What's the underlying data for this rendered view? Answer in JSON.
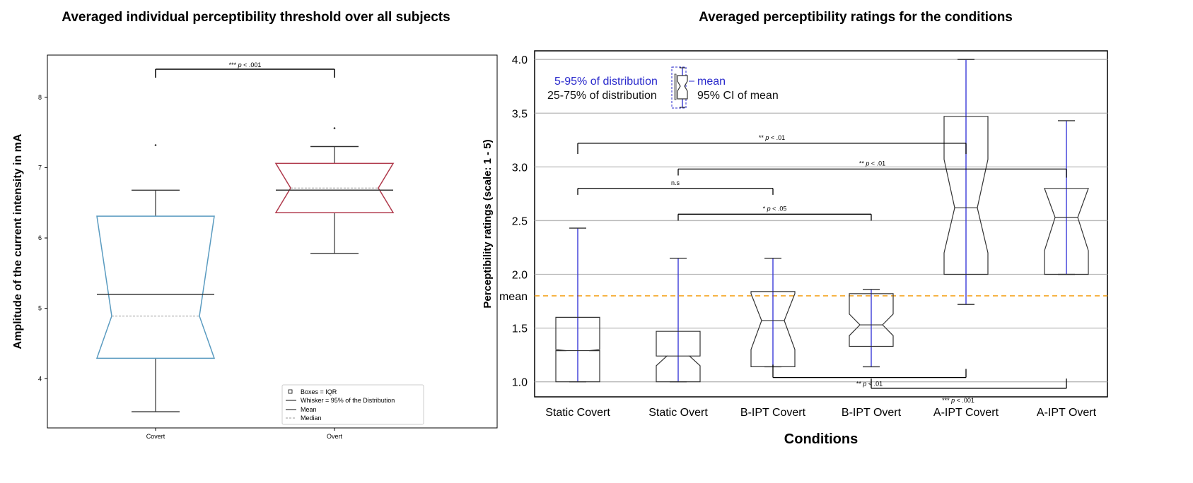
{
  "chart_data": [
    {
      "type": "box",
      "title": "Averaged individual perceptibility threshold over all subjects",
      "xlabel": "",
      "ylabel": "Amplitude of the current intensity in mA",
      "ylim": [
        3.3,
        8.6
      ],
      "yticks": [
        "4",
        "5",
        "6",
        "7",
        "8"
      ],
      "categories": [
        "Covert",
        "Overt"
      ],
      "boxes": [
        {
          "name": "Covert",
          "q1": 4.29,
          "q3": 6.31,
          "median": 4.89,
          "mean": 5.2,
          "notch_low": 4.89,
          "notch_high": 4.89,
          "whisker_low": 3.53,
          "whisker_high": 6.68,
          "outliers": [
            7.32
          ],
          "color": "#5a9bc0"
        },
        {
          "name": "Overt",
          "q1": 6.36,
          "q3": 7.06,
          "median": 6.71,
          "mean": 6.68,
          "notch_low": 6.69,
          "notch_high": 6.71,
          "whisker_low": 5.78,
          "whisker_high": 7.3,
          "outliers": [
            7.56
          ],
          "color": "#b03a4c"
        }
      ],
      "significance": [
        {
          "from": "Covert",
          "to": "Overt",
          "label": "*** p < .001",
          "stars": "***",
          "text": "p < .001"
        }
      ],
      "legend": {
        "position": "bottom-right",
        "entries": [
          "Boxes = IQR",
          "Whisker = 95% of the Distribution",
          "Mean",
          "Median"
        ]
      }
    },
    {
      "type": "box",
      "title": "Averaged perceptibility ratings for the conditions",
      "xlabel": "Conditions",
      "ylabel": "Perceptibility ratings (scale: 1 - 5)",
      "ylim": [
        0.86,
        4.08
      ],
      "yticks": [
        "1.0",
        "1.5",
        "2.0",
        "2.5",
        "3.0",
        "3.5",
        "4.0"
      ],
      "mean_line": {
        "value": 1.8,
        "label": "mean",
        "color": "#f5a623"
      },
      "categories": [
        "Static Covert",
        "Static Overt",
        "B-IPT Covert",
        "B-IPT Overt",
        "A-IPT Covert",
        "A-IPT Overt"
      ],
      "boxes": [
        {
          "name": "Static Covert",
          "q1": 1.0,
          "q3": 1.6,
          "median": 1.29,
          "notch_low": 1.29,
          "notch_high": 1.3,
          "mean": 1.3,
          "whisker_low": 1.0,
          "whisker_high": 2.43
        },
        {
          "name": "Static Overt",
          "q1": 1.0,
          "q3": 1.47,
          "median": 1.24,
          "notch_low": 1.15,
          "notch_high": 1.24,
          "mean": 1.24,
          "whisker_low": 1.0,
          "whisker_high": 2.15
        },
        {
          "name": "B-IPT Covert",
          "q1": 1.14,
          "q3": 1.84,
          "median": 1.57,
          "notch_low": 1.3,
          "notch_high": 1.82,
          "mean": 1.57,
          "whisker_low": 1.14,
          "whisker_high": 2.15
        },
        {
          "name": "B-IPT Overt",
          "q1": 1.33,
          "q3": 1.82,
          "median": 1.53,
          "notch_low": 1.43,
          "notch_high": 1.63,
          "mean": 1.53,
          "whisker_low": 1.14,
          "whisker_high": 1.86
        },
        {
          "name": "A-IPT Covert",
          "q1": 2.0,
          "q3": 3.47,
          "median": 2.62,
          "notch_low": 2.2,
          "notch_high": 3.07,
          "mean": 2.62,
          "whisker_low": 1.72,
          "whisker_high": 4.0
        },
        {
          "name": "A-IPT Overt",
          "q1": 2.0,
          "q3": 2.8,
          "median": 2.53,
          "notch_low": 2.22,
          "notch_high": 2.8,
          "mean": 2.53,
          "whisker_low": 2.0,
          "whisker_high": 3.43
        }
      ],
      "significance": [
        {
          "from": "Static Covert",
          "to": "A-IPT Covert",
          "label": "** p < .01",
          "stars": "**",
          "text": "p < .01",
          "level": 3.22,
          "from_drop": 3.12,
          "to_drop": 3.12
        },
        {
          "from": "Static Overt",
          "to": "A-IPT Overt",
          "label": "** p < .01",
          "stars": "**",
          "text": "p < .01",
          "level": 2.98,
          "from_drop": 2.92,
          "to_drop": 2.9
        },
        {
          "from": "Static Covert",
          "to": "B-IPT Covert",
          "label": "n.s",
          "stars": "",
          "text": "n.s",
          "level": 2.8,
          "from_drop": 2.74,
          "to_drop": 2.74
        },
        {
          "from": "Static Overt",
          "to": "B-IPT Overt",
          "label": "* p < .05",
          "stars": "*",
          "text": "p < .05",
          "level": 2.56,
          "from_drop": 2.5,
          "to_drop": 2.5
        },
        {
          "from": "B-IPT Covert",
          "to": "A-IPT Covert",
          "label": "** p < .01",
          "stars": "**",
          "text": "p < .01",
          "level": 1.04,
          "from_drop": 1.16,
          "to_drop": 1.12,
          "below": true
        },
        {
          "from": "B-IPT Overt",
          "to": "A-IPT Overt",
          "label": "*** p < .001",
          "stars": "***",
          "text": "p < .001",
          "level": 0.94,
          "from_drop": 1.03,
          "to_drop": 1.03,
          "below": true,
          "open": true
        }
      ],
      "legend_annotation": {
        "outer": "5-95% of distribution",
        "inner": "25-75% of distribution",
        "mean": "mean",
        "ci": "95% CI of mean",
        "outer_color": "#2a2acc",
        "inner_color": "#111111"
      }
    }
  ]
}
